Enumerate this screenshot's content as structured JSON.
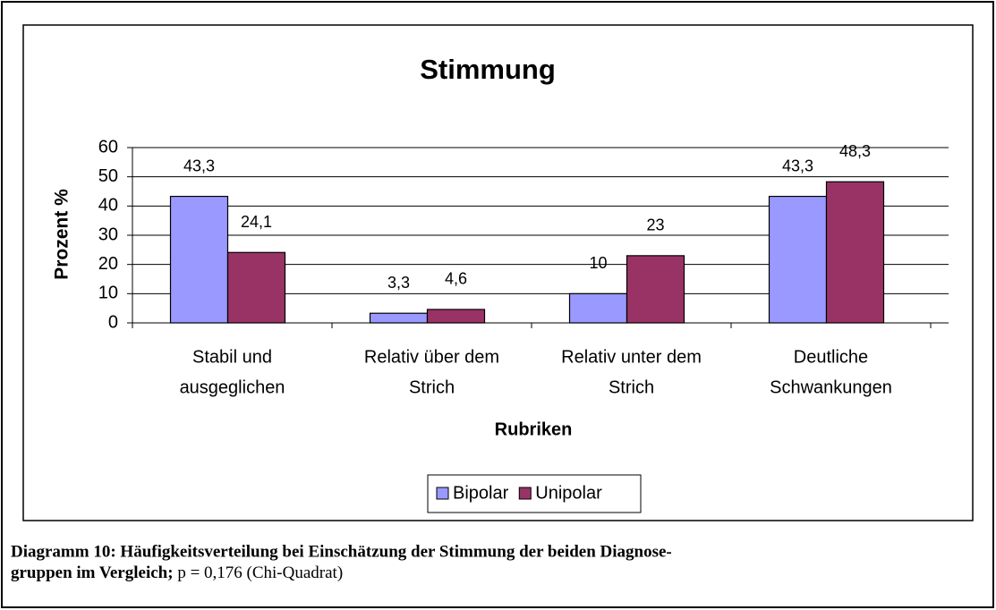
{
  "chart_data": {
    "type": "bar",
    "title": "Stimmung",
    "y_label": "Prozent %",
    "x_label": "Rubriken",
    "categories": [
      [
        "Stabil und",
        "ausgeglichen"
      ],
      [
        "Relativ über dem",
        "Strich"
      ],
      [
        "Relativ unter dem",
        "Strich"
      ],
      [
        "Deutliche",
        "Schwankungen"
      ]
    ],
    "series": [
      {
        "name": "Bipolar",
        "color": "#9999ff",
        "values": [
          43.3,
          3.3,
          10,
          43.3
        ],
        "value_labels": [
          "43,3",
          "3,3",
          "10",
          "43,3"
        ]
      },
      {
        "name": "Unipolar",
        "color": "#993366",
        "values": [
          24.1,
          4.6,
          23,
          48.3
        ],
        "value_labels": [
          "24,1",
          "4,6",
          "23",
          "48,3"
        ]
      }
    ],
    "ylim": [
      0,
      60
    ],
    "yticks": [
      0,
      10,
      20,
      30,
      40,
      50,
      60
    ],
    "grid": true,
    "legend": "bottom"
  },
  "caption": {
    "lines": [
      "Diagramm 10: Häufigkeitsverteilung bei Einschätzung der Stimmung der beiden Diagnose-",
      "gruppen im Vergleich;"
    ],
    "note": "p = 0,176 (Chi-Quadrat)"
  }
}
